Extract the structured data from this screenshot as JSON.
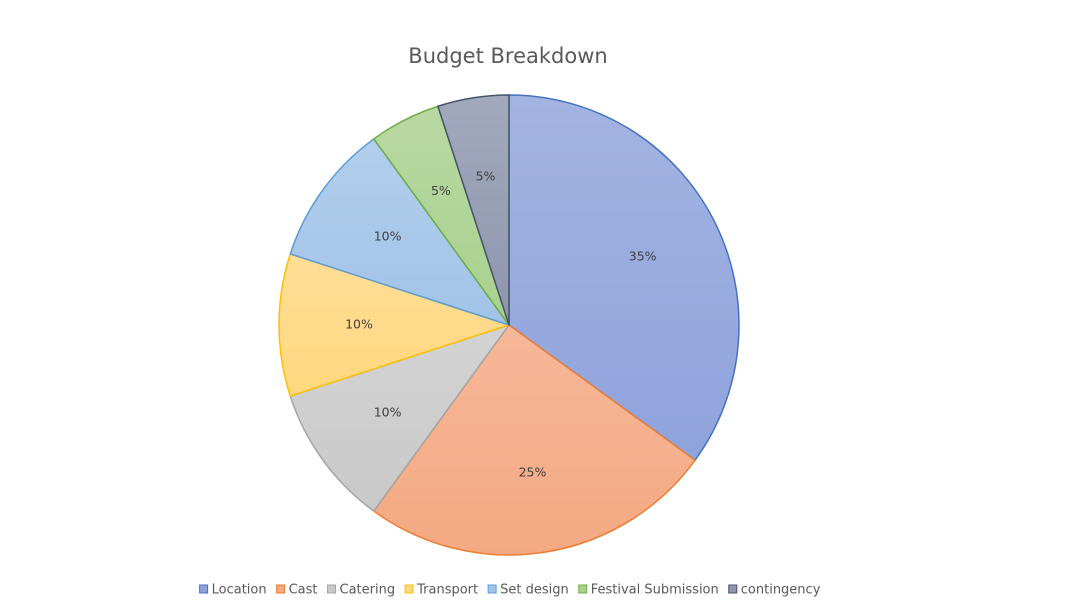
{
  "chart_data": {
    "type": "pie",
    "title": "Budget Breakdown",
    "start_angle_deg": 0,
    "direction": "clockwise",
    "legend_position": "bottom",
    "slices": [
      {
        "name": "Location",
        "value": 35,
        "label": "35%",
        "color": "#8FA3DC",
        "edge": "#4472C4"
      },
      {
        "name": "Cast",
        "value": 25,
        "label": "25%",
        "color": "#F4A982",
        "edge": "#ED7D31"
      },
      {
        "name": "Catering",
        "value": 10,
        "label": "10%",
        "color": "#C9C9C9",
        "edge": "#A5A5A5"
      },
      {
        "name": "Transport",
        "value": 10,
        "label": "10%",
        "color": "#FFD77F",
        "edge": "#FFC000"
      },
      {
        "name": "Set design",
        "value": 10,
        "label": "10%",
        "color": "#A2C3E8",
        "edge": "#5B9BD5"
      },
      {
        "name": "Festival Submission",
        "value": 5,
        "label": "5%",
        "color": "#A9D18E",
        "edge": "#70AD47"
      },
      {
        "name": "contingency",
        "value": 5,
        "label": "5%",
        "color": "#8E96AE",
        "edge": "#44546A"
      }
    ]
  }
}
